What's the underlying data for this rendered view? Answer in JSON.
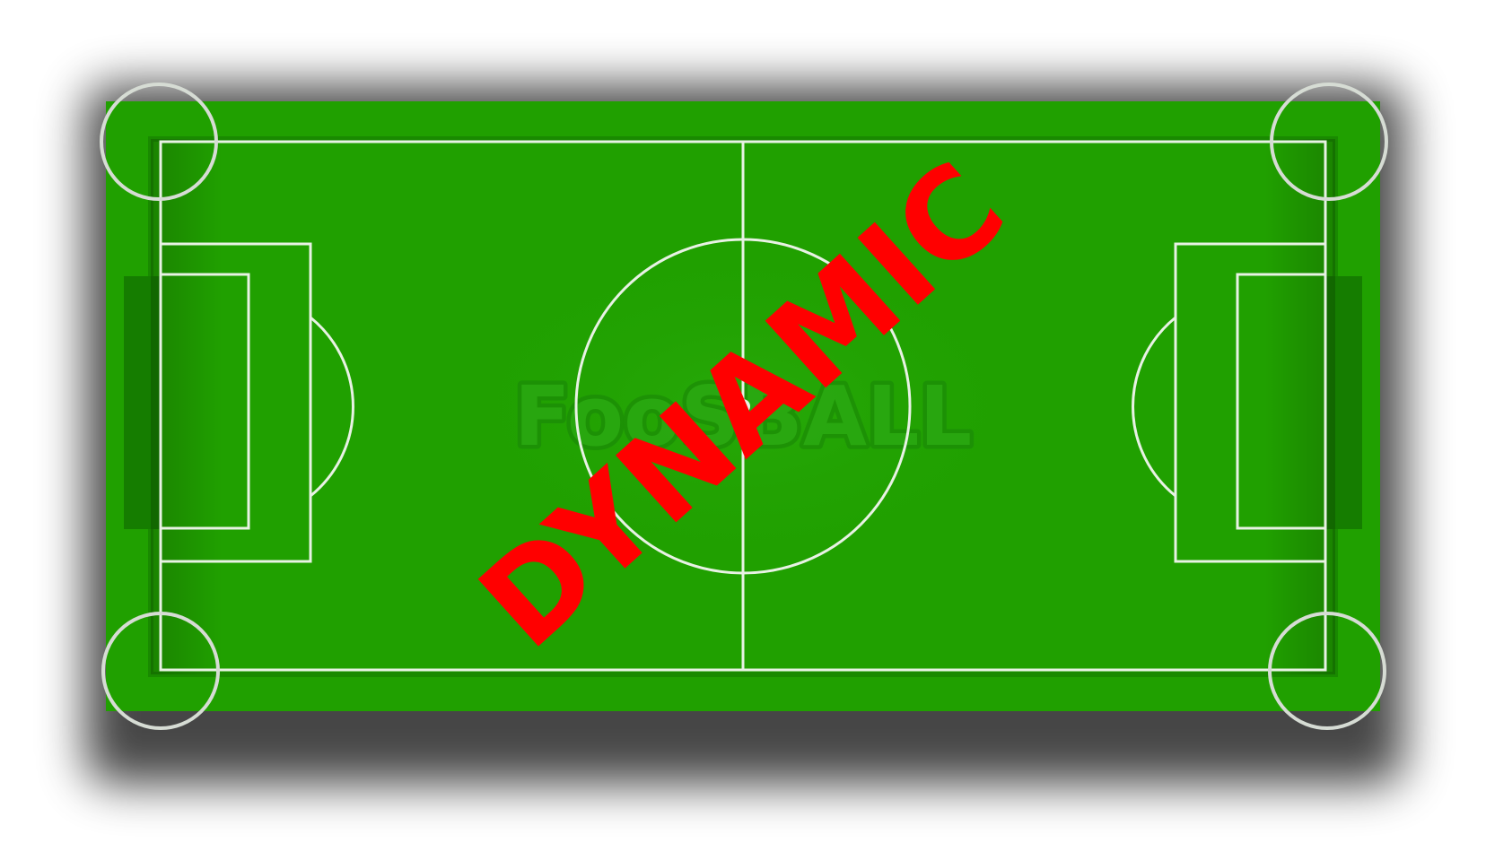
{
  "watermark_text": "DYNAMIC",
  "logo_text": "FooSBALL",
  "colors": {
    "pitch": "#20a000",
    "pitch_edge": "#1a8a00",
    "goal_area": "#1b8f00",
    "lines": "#e8f2e4",
    "corner_rings": "#d6dcd4",
    "stamp": "#ff0000",
    "shadow": "#000000"
  },
  "icons": {
    "corner_marker": "ring",
    "center_spot": "dot"
  }
}
